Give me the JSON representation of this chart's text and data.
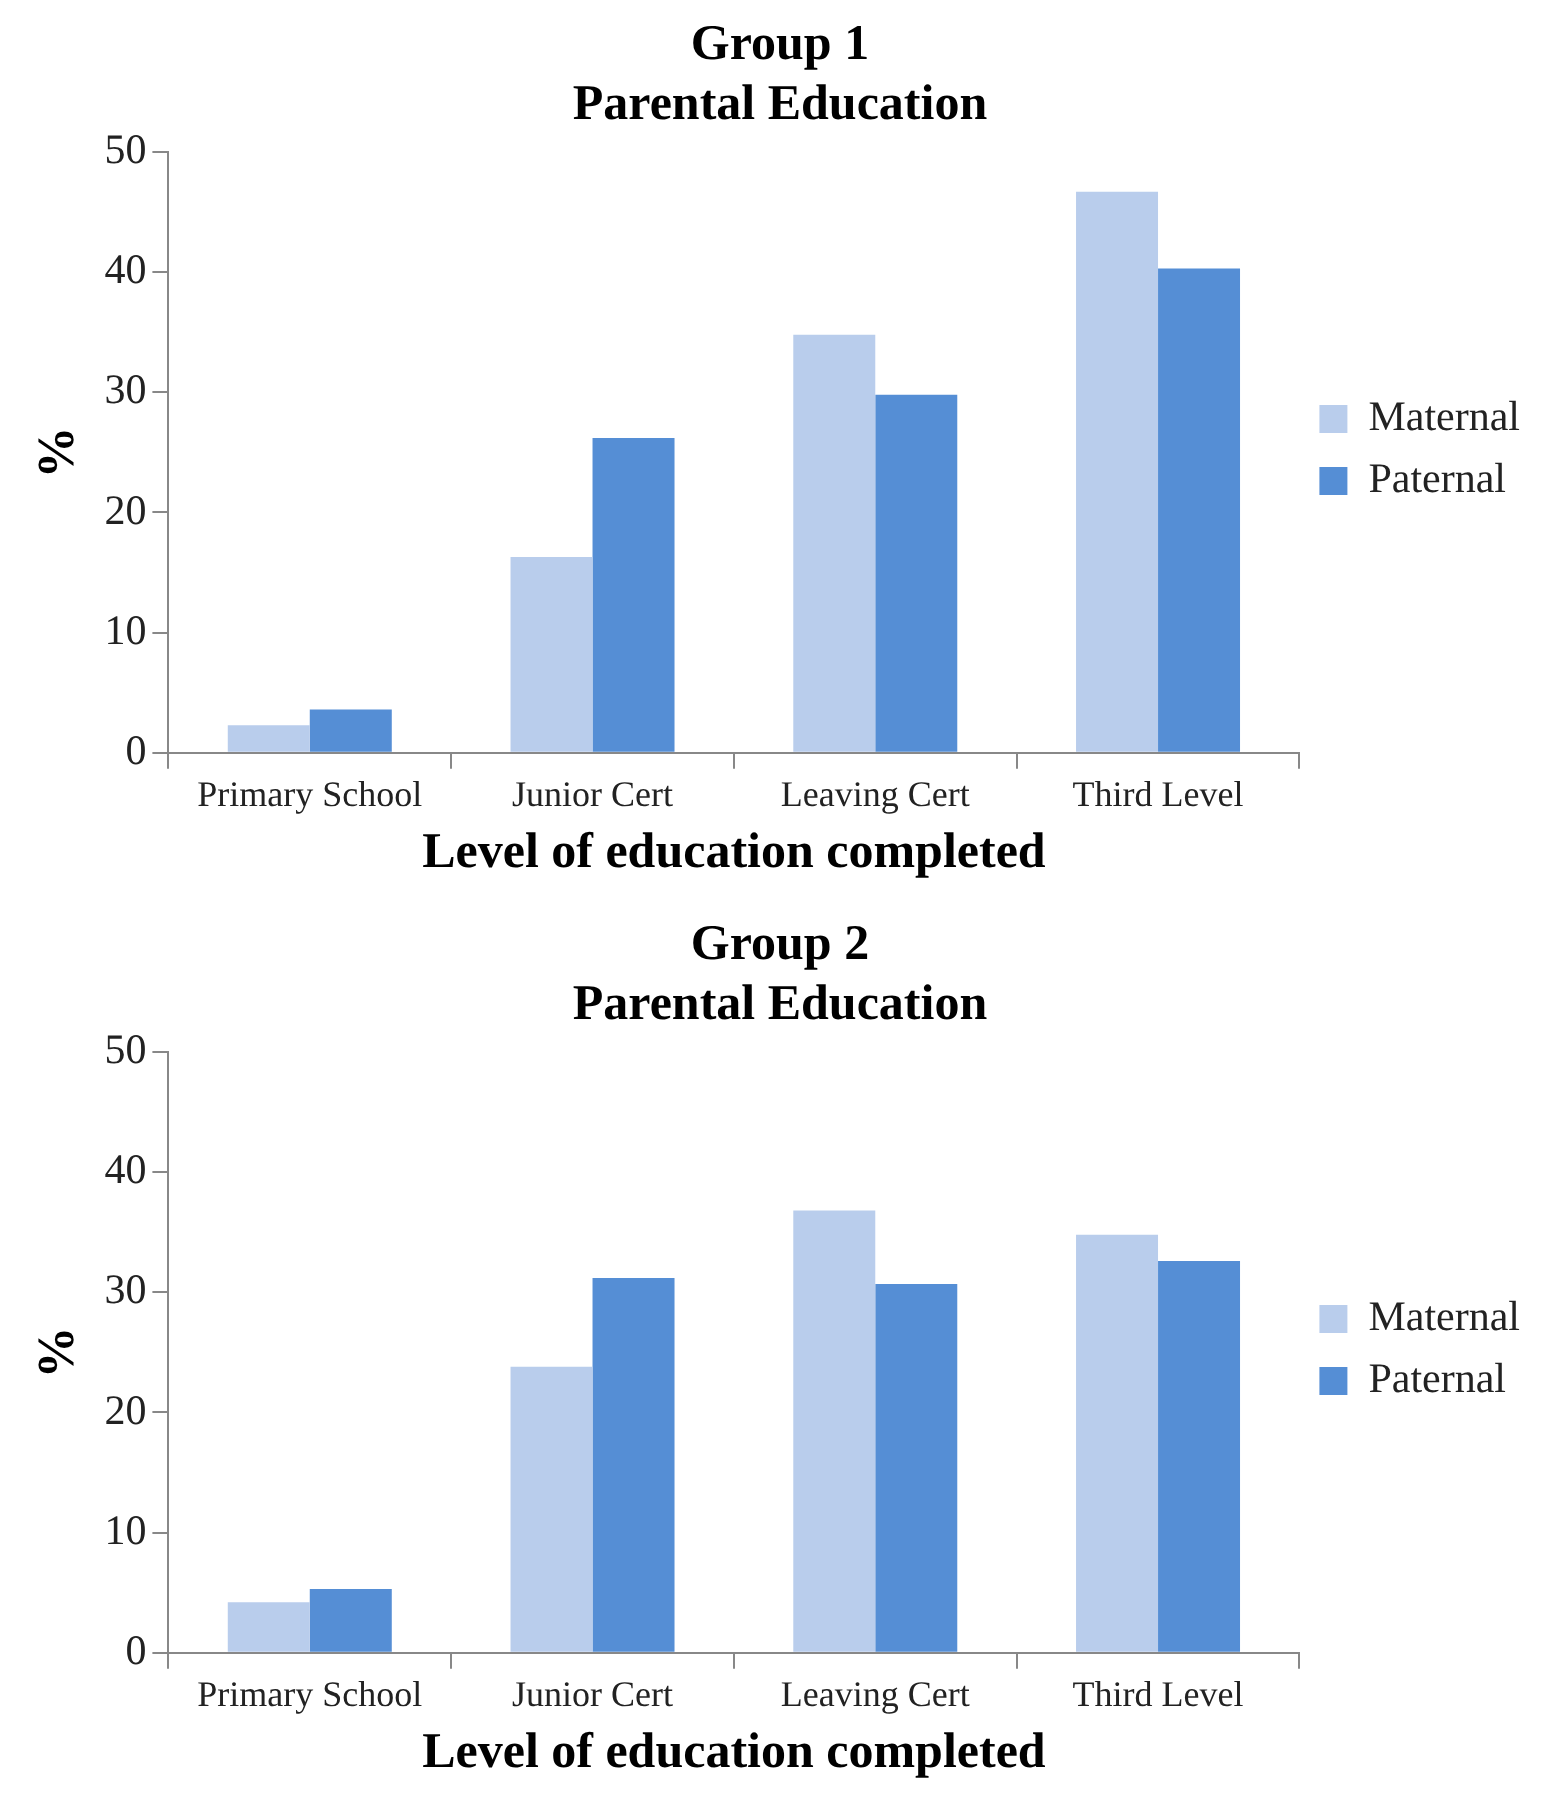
{
  "chart_data": [
    {
      "type": "bar",
      "title": "Group 1",
      "subtitle": "Parental Education",
      "xlabel": "Level of education completed",
      "ylabel": "%",
      "categories": [
        "Primary School",
        "Junior Cert",
        "Leaving Cert",
        "Third Level"
      ],
      "series": [
        {
          "name": "Maternal",
          "color": "#b9cdec",
          "values": [
            2.3,
            16.3,
            34.8,
            46.7
          ]
        },
        {
          "name": "Paternal",
          "color": "#558ed5",
          "values": [
            3.6,
            26.2,
            29.8,
            40.3
          ]
        }
      ],
      "ylim": [
        0,
        50
      ],
      "yticks": [
        0,
        10,
        20,
        30,
        40,
        50
      ],
      "grid": false,
      "legend": "right"
    },
    {
      "type": "bar",
      "title": "Group 2",
      "subtitle": "Parental Education",
      "xlabel": "Level of education completed",
      "ylabel": "%",
      "categories": [
        "Primary School",
        "Junior Cert",
        "Leaving Cert",
        "Third Level"
      ],
      "series": [
        {
          "name": "Maternal",
          "color": "#b9cdec",
          "values": [
            4.2,
            23.8,
            36.8,
            34.8
          ]
        },
        {
          "name": "Paternal",
          "color": "#558ed5",
          "values": [
            5.3,
            31.2,
            30.7,
            32.6
          ]
        }
      ],
      "ylim": [
        0,
        50
      ],
      "yticks": [
        0,
        10,
        20,
        30,
        40,
        50
      ],
      "grid": false,
      "legend": "right"
    }
  ]
}
